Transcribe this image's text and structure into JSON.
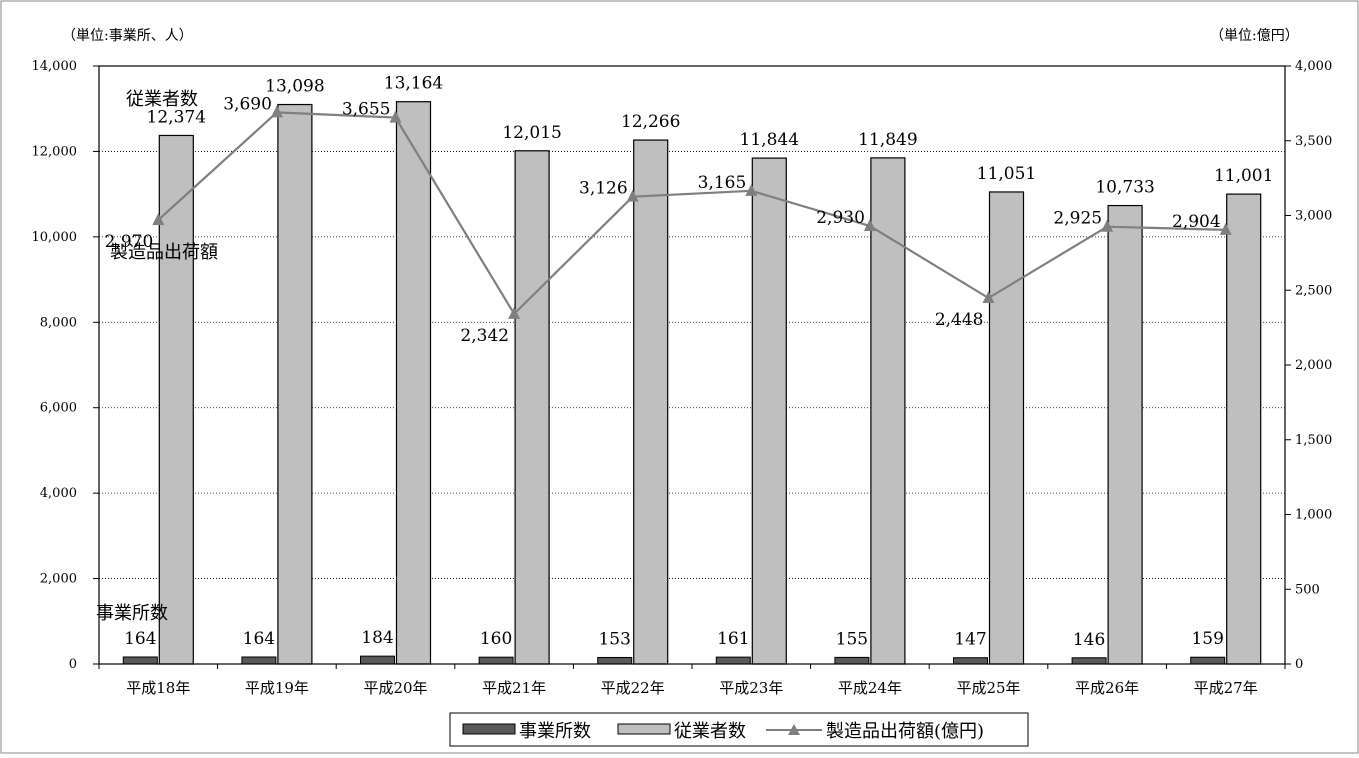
{
  "chart_data": {
    "type": "bar",
    "categories": [
      "平成18年",
      "平成19年",
      "平成20年",
      "平成21年",
      "平成22年",
      "平成23年",
      "平成24年",
      "平成25年",
      "平成26年",
      "平成27年"
    ],
    "series": [
      {
        "name": "事業所数",
        "type": "bar",
        "axis": "left",
        "color": "#595959",
        "values": [
          164,
          164,
          184,
          160,
          153,
          161,
          155,
          147,
          146,
          159
        ],
        "labels": [
          "164",
          "164",
          "184",
          "160",
          "153",
          "161",
          "155",
          "147",
          "146",
          "159"
        ]
      },
      {
        "name": "従業者数",
        "type": "bar",
        "axis": "left",
        "color": "#bfbfbf",
        "values": [
          12374,
          13098,
          13164,
          12015,
          12266,
          11844,
          11849,
          11051,
          10733,
          11001
        ],
        "labels": [
          "12,374",
          "13,098",
          "13,164",
          "12,015",
          "12,266",
          "11,844",
          "11,849",
          "11,051",
          "10,733",
          "11,001"
        ]
      },
      {
        "name": "製造品出荷額(億円)",
        "type": "line",
        "axis": "right",
        "color": "#7f7f7f",
        "values": [
          2970,
          3690,
          3655,
          2342,
          3126,
          3165,
          2930,
          2448,
          2925,
          2904
        ],
        "labels": [
          "2,970",
          "3,690",
          "3,655",
          "2,342",
          "3,126",
          "3,165",
          "2,930",
          "2,448",
          "2,925",
          "2,904"
        ]
      }
    ],
    "y_left": {
      "unit": "（単位:事業所、人）",
      "range": [
        0,
        14000
      ],
      "ticks": [
        "0",
        "2,000",
        "4,000",
        "6,000",
        "8,000",
        "10,000",
        "12,000",
        "14,000"
      ]
    },
    "y_right": {
      "unit": "（単位:億円）",
      "range": [
        0,
        4000
      ],
      "ticks": [
        "0",
        "500",
        "1,000",
        "1,500",
        "2,000",
        "2,500",
        "3,000",
        "3,500",
        "4,000"
      ]
    },
    "annotations": {
      "establishments": "事業所数",
      "employees": "従業者数",
      "shipments": "製造品出荷額"
    },
    "legend": {
      "position": "bottom",
      "items": [
        "事業所数",
        "従業者数",
        "製造品出荷額(億円)"
      ]
    },
    "grid": "horizontal dotted"
  }
}
